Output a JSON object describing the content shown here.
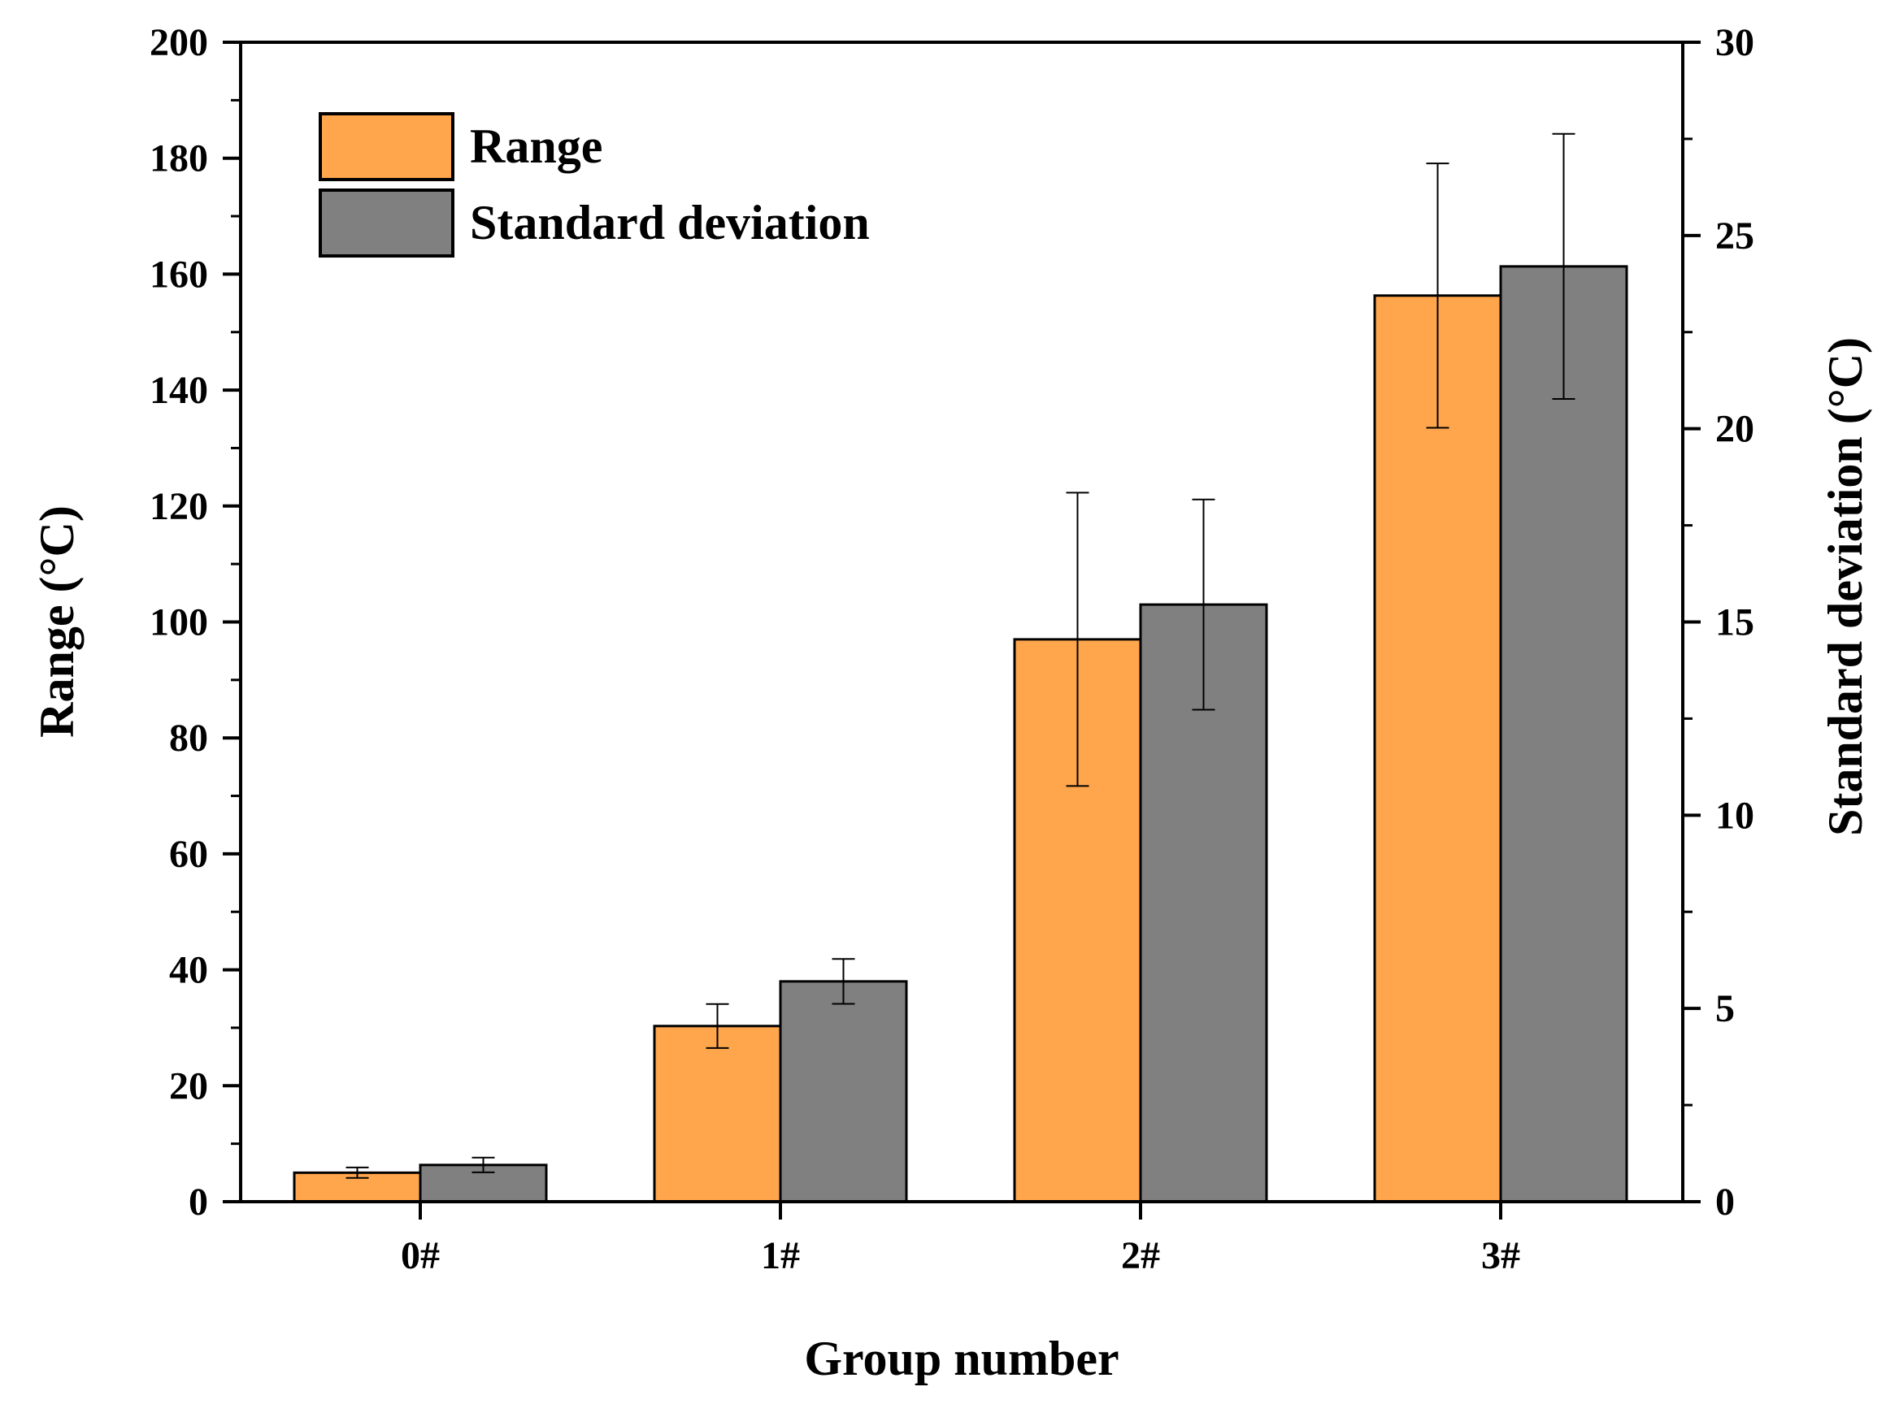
{
  "chart_data": {
    "type": "bar",
    "categories": [
      "0#",
      "1#",
      "2#",
      "3#"
    ],
    "series": [
      {
        "name": "Range",
        "axis": "left",
        "color": "#FFA64D",
        "values": [
          5,
          30.3,
          97,
          156.3
        ],
        "errors": [
          0.9,
          3.8,
          25.3,
          22.8
        ]
      },
      {
        "name": "Standard deviation",
        "axis": "right",
        "color": "#808080",
        "values": [
          0.95,
          5.7,
          15.45,
          24.2
        ],
        "errors": [
          0.19,
          0.58,
          2.72,
          3.43
        ]
      }
    ],
    "xlabel": "Group number",
    "ylabel": "Range (°C)",
    "y2label": "Standard deviation (°C)",
    "ylim": [
      0,
      200
    ],
    "y2lim": [
      0,
      30
    ],
    "yticks": [
      "0",
      "20",
      "40",
      "60",
      "80",
      "100",
      "120",
      "140",
      "160",
      "180",
      "200"
    ],
    "y2ticks": [
      "0",
      "5",
      "10",
      "15",
      "20",
      "25",
      "30"
    ],
    "legend_position": "top-left",
    "grid": false
  }
}
